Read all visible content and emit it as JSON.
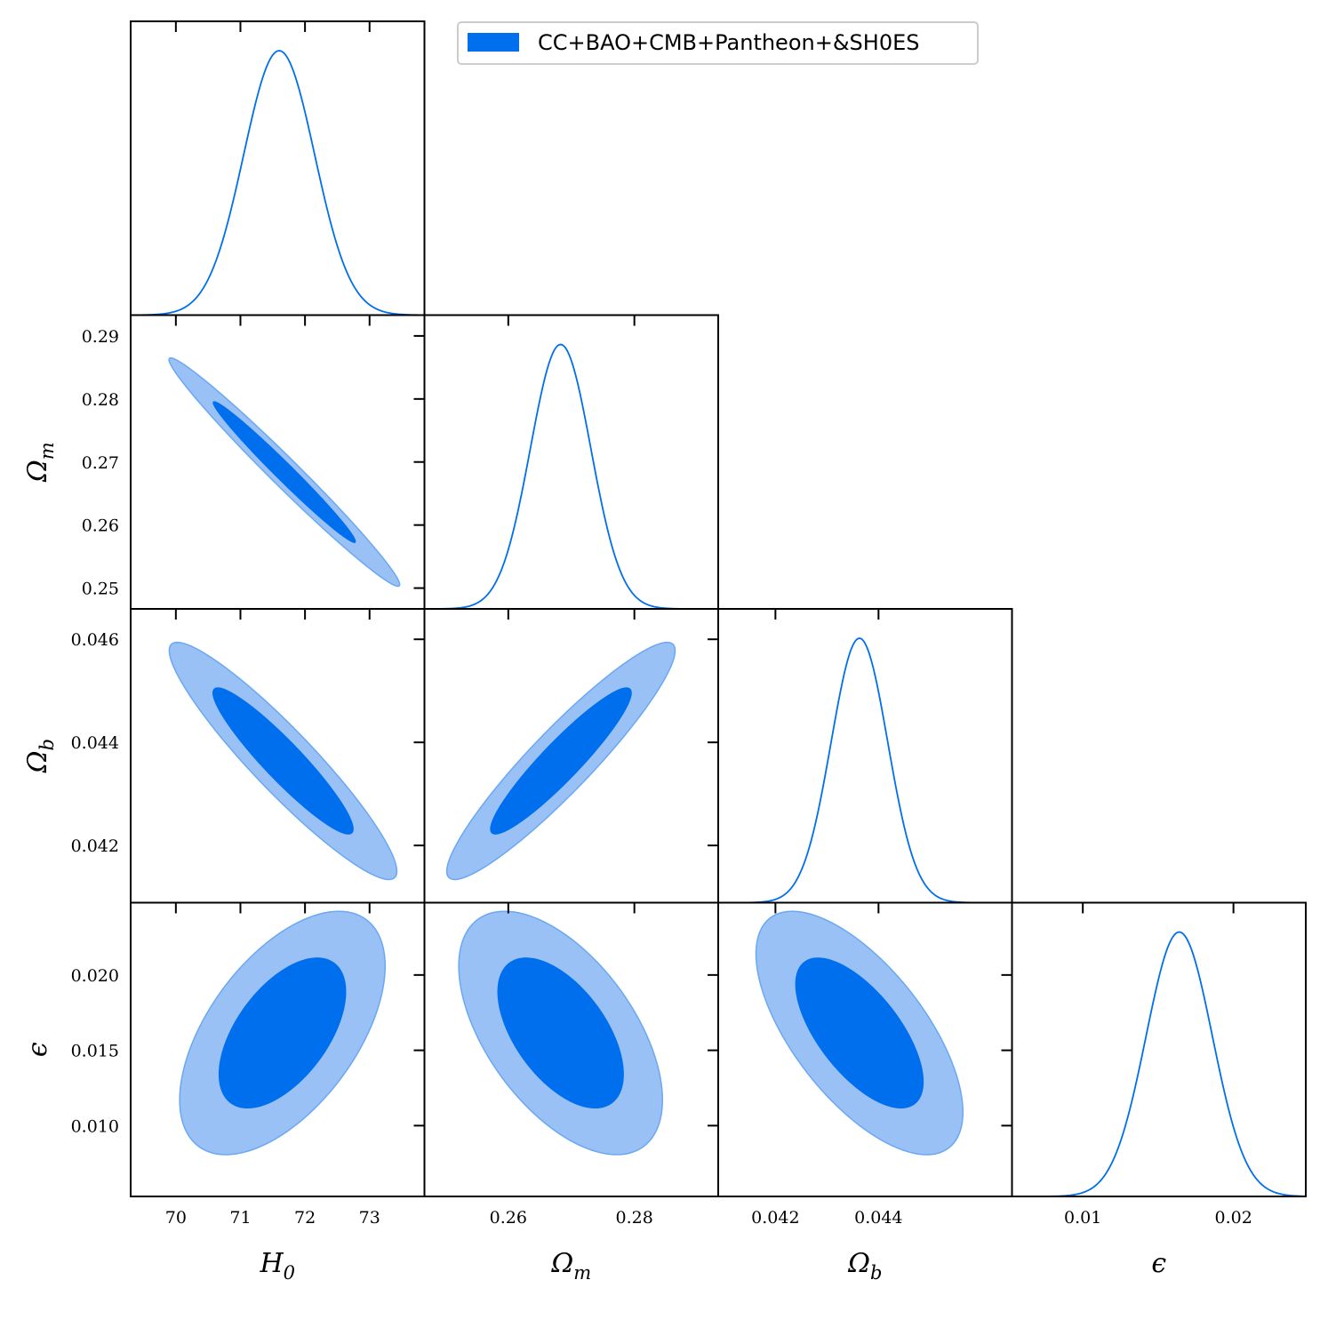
{
  "chart_data": {
    "type": "corner",
    "legend": {
      "label": "CC+BAO+CMB+Pantheon+&SH0ES",
      "placement": "top-center"
    },
    "colors": {
      "inner": "#006FED",
      "outer": "#99C1F6",
      "line": "#006FED",
      "frame": "#000000"
    },
    "parameters": [
      {
        "name": "H0",
        "symbol": "H",
        "sub": "0",
        "range": [
          69.3,
          73.85
        ],
        "ticks": [
          70,
          71,
          72,
          73
        ],
        "tick_labels": [
          "70",
          "71",
          "72",
          "73"
        ]
      },
      {
        "name": "Omega_m",
        "symbol": "Ω",
        "sub": "m",
        "range": [
          0.2467,
          0.2933
        ],
        "ticks": [
          0.25,
          0.26,
          0.27,
          0.28,
          0.29
        ],
        "tick_labels_y": [
          "0.25",
          "0.26",
          "0.27",
          "0.28",
          "0.29"
        ],
        "ticks_x": [
          0.26,
          0.28
        ],
        "tick_labels_x": [
          "0.26",
          "0.28"
        ]
      },
      {
        "name": "Omega_b",
        "symbol": "Ω",
        "sub": "b",
        "range": [
          0.04089,
          0.04659
        ],
        "ticks": [
          0.042,
          0.044,
          0.046
        ],
        "tick_labels_y": [
          "0.042",
          "0.044",
          "0.046"
        ],
        "ticks_x": [
          0.042,
          0.044
        ],
        "tick_labels_x": [
          "0.042",
          "0.044"
        ]
      },
      {
        "name": "epsilon",
        "symbol": "ϵ",
        "sub": "",
        "range": [
          0.0053,
          0.0248
        ],
        "ticks": [
          0.01,
          0.015,
          0.02
        ],
        "tick_labels_y": [
          "0.010",
          "0.015",
          "0.020"
        ],
        "ticks_x": [
          0.01,
          0.02
        ],
        "tick_labels_x": [
          "0.01",
          "0.02"
        ]
      }
    ],
    "marginals": [
      {
        "param": "H0",
        "mean": 71.6,
        "sigma": 0.55,
        "peak_scale": 0.9
      },
      {
        "param": "Omega_m",
        "mean": 0.2683,
        "sigma": 0.0048,
        "peak_scale": 0.9
      },
      {
        "param": "Omega_b",
        "mean": 0.04363,
        "sigma": 0.00055,
        "peak_scale": 0.9
      },
      {
        "param": "epsilon",
        "mean": 0.0164,
        "sigma": 0.0022,
        "peak_scale": 0.9
      }
    ],
    "contours": [
      {
        "x": "H0",
        "y": "Omega_m",
        "mean": [
          71.68,
          0.2684
        ],
        "sx": 0.73,
        "sy": 0.0074,
        "rho": -0.985
      },
      {
        "x": "H0",
        "y": "Omega_b",
        "mean": [
          71.66,
          0.04364
        ],
        "sx": 0.72,
        "sy": 0.00094,
        "rho": -0.93
      },
      {
        "x": "Omega_m",
        "y": "Omega_b",
        "mean": [
          0.26835,
          0.04364
        ],
        "sx": 0.0074,
        "sy": 0.00094,
        "rho": 0.93
      },
      {
        "x": "H0",
        "y": "epsilon",
        "mean": [
          71.65,
          0.01615
        ],
        "sx": 0.65,
        "sy": 0.0033,
        "rho": 0.55
      },
      {
        "x": "Omega_m",
        "y": "epsilon",
        "mean": [
          0.2683,
          0.01615
        ],
        "sx": 0.0066,
        "sy": 0.0033,
        "rho": -0.55
      },
      {
        "x": "Omega_b",
        "y": "epsilon",
        "mean": [
          0.04363,
          0.01615
        ],
        "sx": 0.00082,
        "sy": 0.0033,
        "rho": -0.65
      }
    ],
    "contour_levels": [
      "68%",
      "95%"
    ]
  }
}
